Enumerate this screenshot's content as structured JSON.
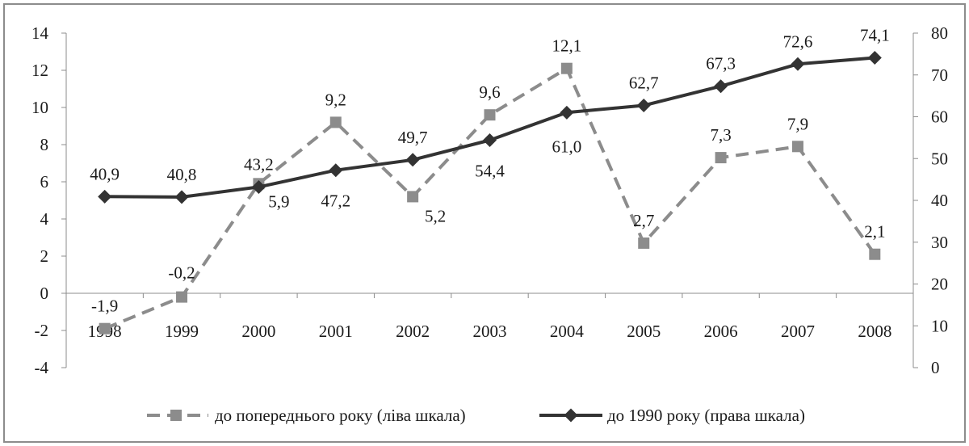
{
  "chart_data": {
    "type": "line",
    "categories": [
      "1998",
      "1999",
      "2000",
      "2001",
      "2002",
      "2003",
      "2004",
      "2005",
      "2006",
      "2007",
      "2008"
    ],
    "left_axis": {
      "ylim": [
        -4,
        14
      ],
      "ticks": [
        "14",
        "12",
        "10",
        "8",
        "6",
        "4",
        "2",
        "0",
        "-2",
        "-4"
      ],
      "tick_values": [
        14,
        12,
        10,
        8,
        6,
        4,
        2,
        0,
        -2,
        -4
      ]
    },
    "right_axis": {
      "ylim": [
        0,
        80
      ],
      "ticks": [
        "80",
        "70",
        "60",
        "50",
        "40",
        "30",
        "20",
        "10",
        "0"
      ],
      "tick_values": [
        80,
        70,
        60,
        50,
        40,
        30,
        20,
        10,
        0
      ]
    },
    "series": [
      {
        "name": "до попереднього року (ліва шкала)",
        "axis": "left",
        "style": "dashed",
        "marker": "square",
        "color": "#8c8c8c",
        "values": [
          -1.9,
          -0.2,
          5.9,
          9.2,
          5.2,
          9.6,
          12.1,
          2.7,
          7.3,
          7.9,
          2.1
        ],
        "labels": [
          "-1,9",
          "-0,2",
          "5,9",
          "9,2",
          "5,2",
          "9,6",
          "12,1",
          "2,7",
          "7,3",
          "7,9",
          "2,1"
        ]
      },
      {
        "name": "до 1990 року (права шкала)",
        "axis": "right",
        "style": "solid",
        "marker": "diamond",
        "color": "#333333",
        "values": [
          40.9,
          40.8,
          43.2,
          47.2,
          49.7,
          54.4,
          61.0,
          62.7,
          67.3,
          72.6,
          74.1
        ],
        "labels": [
          "40,9",
          "40,8",
          "43,2",
          "47,2",
          "49,7",
          "54,4",
          "61,0",
          "62,7",
          "67,3",
          "72,6",
          "74,1"
        ]
      }
    ],
    "grid": false,
    "legend_position": "bottom"
  }
}
